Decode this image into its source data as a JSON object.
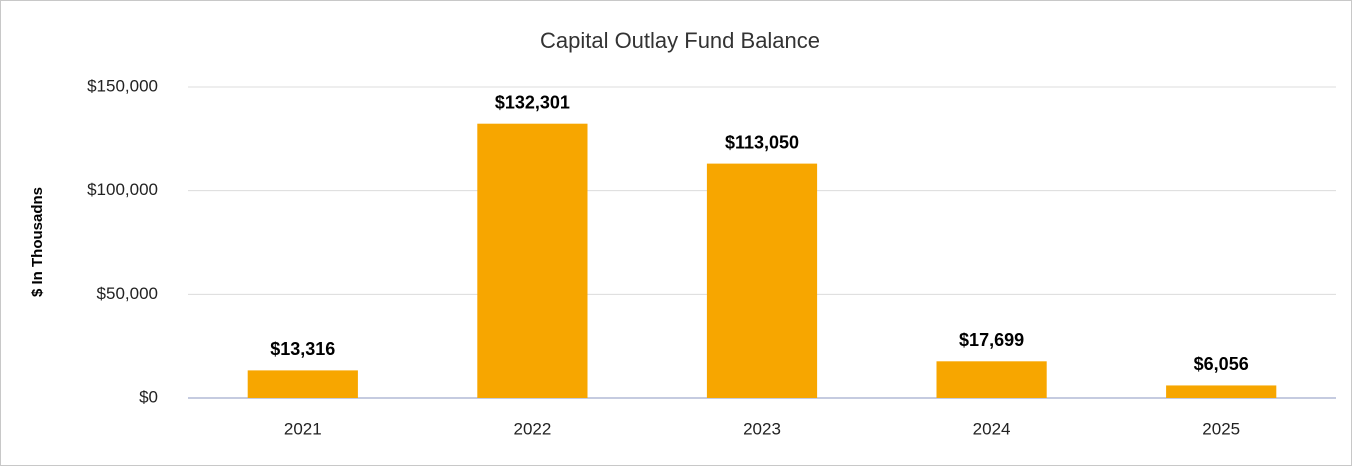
{
  "chart_data": {
    "type": "bar",
    "title": "Capital Outlay Fund Balance",
    "y_label": "$ In Thousadns",
    "categories": [
      "2021",
      "2022",
      "2023",
      "2024",
      "2025"
    ],
    "values": [
      13316,
      132301,
      113050,
      17699,
      6056
    ],
    "value_labels": [
      "$13,316",
      "$132,301",
      "$113,050",
      "$17,699",
      "$6,056"
    ],
    "color": "#f7a600",
    "ylim": [
      0,
      150000
    ],
    "yticks": [
      {
        "value": 0,
        "label": "$0"
      },
      {
        "value": 50000,
        "label": "$50,000"
      },
      {
        "value": 100000,
        "label": "$100,000"
      },
      {
        "value": 150000,
        "label": "$150,000"
      }
    ],
    "grid": true
  }
}
